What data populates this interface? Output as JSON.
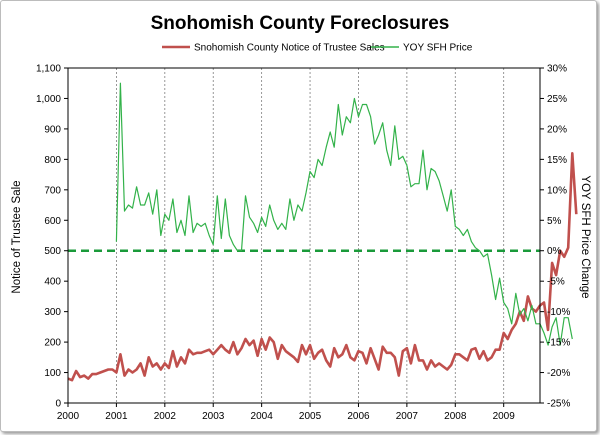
{
  "chart_data": {
    "type": "line",
    "title": "Snohomish County Foreclosures",
    "ylabel": "Notice of Trustee Sale",
    "y2label": "YOY SFH Price Change",
    "xlim": [
      2000,
      2009.75
    ],
    "ylim": [
      0,
      1100
    ],
    "y2lim": [
      -25,
      30
    ],
    "x_ticks": [
      "2000",
      "2001",
      "2002",
      "2003",
      "2004",
      "2005",
      "2006",
      "2007",
      "2008",
      "2009"
    ],
    "y_ticks": [
      "0",
      "100",
      "200",
      "300",
      "400",
      "500",
      "600",
      "700",
      "800",
      "900",
      "1,000",
      "1,100"
    ],
    "y2_ticks": [
      "-25%",
      "-20%",
      "-15%",
      "-10%",
      "-5%",
      "0%",
      "5%",
      "10%",
      "15%",
      "20%",
      "25%",
      "30%"
    ],
    "grid": "vertical at years",
    "reference_line": {
      "axis": "y2",
      "value": 0,
      "style": "dashed",
      "color": "#1a9a3a"
    },
    "legend_position": "top",
    "series": [
      {
        "name": "Snohomish County Notice of Trustee Sales",
        "axis": "left",
        "color": "#c0504d",
        "x_start": 2000,
        "x_step": 0.08333,
        "values": [
          80,
          75,
          105,
          85,
          90,
          80,
          95,
          95,
          100,
          105,
          110,
          110,
          100,
          160,
          90,
          110,
          100,
          110,
          130,
          90,
          150,
          120,
          130,
          110,
          130,
          115,
          170,
          120,
          150,
          130,
          175,
          160,
          165,
          165,
          170,
          175,
          160,
          175,
          190,
          175,
          165,
          200,
          160,
          180,
          210,
          190,
          205,
          155,
          210,
          175,
          215,
          200,
          145,
          190,
          170,
          160,
          150,
          135,
          190,
          160,
          190,
          145,
          165,
          175,
          140,
          120,
          180,
          150,
          160,
          190,
          150,
          140,
          170,
          165,
          130,
          180,
          145,
          110,
          185,
          165,
          165,
          150,
          90,
          170,
          180,
          130,
          190,
          140,
          140,
          110,
          140,
          120,
          130,
          120,
          110,
          125,
          160,
          160,
          150,
          140,
          175,
          180,
          145,
          170,
          140,
          150,
          175,
          175,
          230,
          210,
          240,
          260,
          300,
          270,
          350,
          310,
          300,
          320,
          330,
          240,
          460,
          420,
          500,
          480,
          510,
          820,
          620
        ]
      },
      {
        "name": "YOY SFH Price",
        "axis": "right",
        "color": "#33b24a",
        "x_start": 2001,
        "x_step": 0.08333,
        "values": [
          1.5,
          27.5,
          6.5,
          7.5,
          7.0,
          10.5,
          7.5,
          7.5,
          9.5,
          6.0,
          10.0,
          2.5,
          6.0,
          5.0,
          8.5,
          3.0,
          5.0,
          2.5,
          9.0,
          3.0,
          4.5,
          4.0,
          4.5,
          2.5,
          1.0,
          9.0,
          2.0,
          8.5,
          2.5,
          1.0,
          0.0,
          0.0,
          9.0,
          5.5,
          4.5,
          3.0,
          5.5,
          4.0,
          7.5,
          5.0,
          3.5,
          4.5,
          3.5,
          8.5,
          5.0,
          7.5,
          6.5,
          9.5,
          13.0,
          12.0,
          15.0,
          14.0,
          17.0,
          19.5,
          17.0,
          24.0,
          19.0,
          22.0,
          21.0,
          25.0,
          22.0,
          24.0,
          24.0,
          22.0,
          17.5,
          19.0,
          21.0,
          16.5,
          14.0,
          20.5,
          15.0,
          15.5,
          14.0,
          10.5,
          11.0,
          11.0,
          16.5,
          10.0,
          13.5,
          13.0,
          11.5,
          9.0,
          6.5,
          10.0,
          4.0,
          3.5,
          2.5,
          3.5,
          1.5,
          0.5,
          0.0,
          -1.0,
          -0.5,
          -4.0,
          -8.0,
          -4.5,
          -8.5,
          -9.5,
          -12.0,
          -7.0,
          -10.5,
          -9.5,
          -11.5,
          -9.0,
          -12.0,
          -12.0,
          -13.5,
          -15.5,
          -12.5,
          -11.0,
          -15.5,
          -11.0,
          -11.0,
          -14.5
        ]
      }
    ]
  }
}
